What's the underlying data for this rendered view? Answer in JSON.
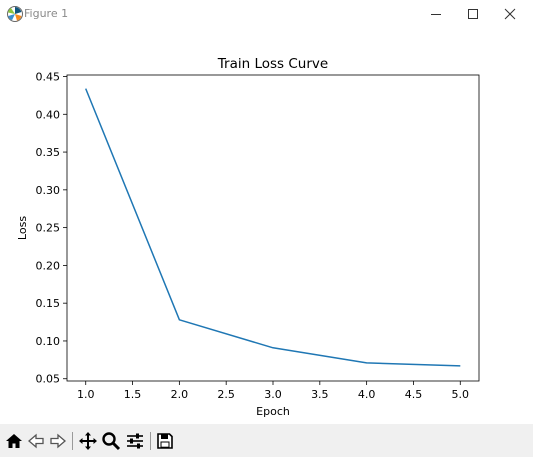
{
  "window": {
    "title": "Figure 1",
    "icons": [
      "matplotlib-icon",
      "minimize-icon",
      "maximize-icon",
      "close-icon"
    ]
  },
  "toolbar": {
    "buttons": [
      "home-icon",
      "back-icon",
      "forward-icon",
      "pan-icon",
      "zoom-icon",
      "configure-subplots-icon",
      "save-icon"
    ]
  },
  "chart_data": {
    "type": "line",
    "title": "Train Loss Curve",
    "xlabel": "Epoch",
    "ylabel": "Loss",
    "x": [
      1,
      2,
      3,
      4,
      5
    ],
    "series": [
      {
        "values": [
          0.434,
          0.128,
          0.091,
          0.071,
          0.067
        ],
        "color": "#1f77b4"
      }
    ],
    "xlim": [
      0.8,
      5.2
    ],
    "ylim": [
      0.047,
      0.452
    ],
    "xticks": [
      1.0,
      1.5,
      2.0,
      2.5,
      3.0,
      3.5,
      4.0,
      4.5,
      5.0
    ],
    "xtick_labels": [
      "1.0",
      "1.5",
      "2.0",
      "2.5",
      "3.0",
      "3.5",
      "4.0",
      "4.5",
      "5.0"
    ],
    "yticks": [
      0.05,
      0.1,
      0.15,
      0.2,
      0.25,
      0.3,
      0.35,
      0.4,
      0.45
    ],
    "ytick_labels": [
      "0.05",
      "0.10",
      "0.15",
      "0.20",
      "0.25",
      "0.30",
      "0.35",
      "0.40",
      "0.45"
    ],
    "grid": false,
    "legend": "none"
  }
}
